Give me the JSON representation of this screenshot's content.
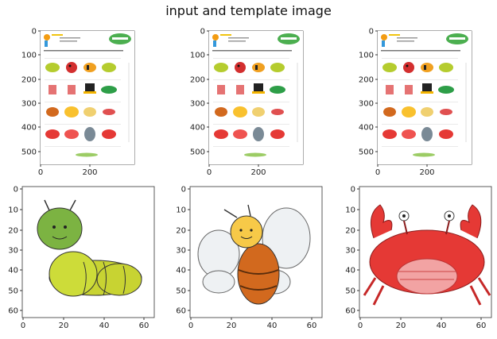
{
  "figure": {
    "title": "input and template image"
  },
  "panels": [
    {
      "kind": "worksheet",
      "x_ticks": [
        "0",
        "200"
      ],
      "y_ticks": [
        "0",
        "100",
        "200",
        "300",
        "400",
        "500"
      ]
    },
    {
      "kind": "worksheet",
      "x_ticks": [
        "0",
        "200"
      ],
      "y_ticks": [
        "0",
        "100",
        "200",
        "300",
        "400",
        "500"
      ]
    },
    {
      "kind": "worksheet",
      "x_ticks": [
        "0",
        "200"
      ],
      "y_ticks": [
        "0",
        "100",
        "200",
        "300",
        "400",
        "500"
      ]
    },
    {
      "kind": "caterpillar",
      "x_ticks": [
        "0",
        "20",
        "40",
        "60"
      ],
      "y_ticks": [
        "0",
        "10",
        "20",
        "30",
        "40",
        "50",
        "60"
      ]
    },
    {
      "kind": "bee",
      "x_ticks": [
        "0",
        "20",
        "40",
        "60"
      ],
      "y_ticks": [
        "0",
        "10",
        "20",
        "30",
        "40",
        "50",
        "60"
      ]
    },
    {
      "kind": "crab",
      "x_ticks": [
        "0",
        "20",
        "40",
        "60"
      ],
      "y_ticks": [
        "0",
        "10",
        "20",
        "30",
        "40",
        "50",
        "60"
      ]
    }
  ],
  "colors": {
    "green": "#8cc63f",
    "yellow_green": "#c8d332",
    "red": "#e03a3a",
    "bee_orange": "#d2691e",
    "bee_yellow": "#f7c948",
    "gray": "#7a8a96"
  }
}
